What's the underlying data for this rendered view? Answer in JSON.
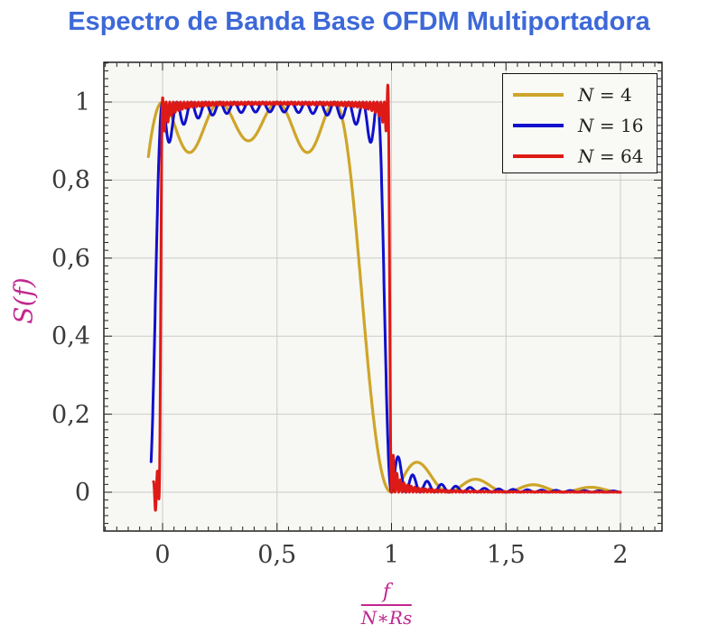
{
  "title": {
    "text": "Espectro de Banda Base OFDM Multiportadora",
    "color": "#3D68D8"
  },
  "legend": {
    "entries": [
      {
        "label": "N = 4",
        "color": "#CEA528"
      },
      {
        "label": "N = 16",
        "color": "#1010CC"
      },
      {
        "label": "N = 64",
        "color": "#DE1A16"
      }
    ]
  },
  "axes": {
    "x": {
      "tick_labels": [
        "0",
        "0,5",
        "1",
        "1,5",
        "2"
      ],
      "tick_values": [
        0,
        0.5,
        1,
        1.5,
        2
      ],
      "minor_step": 0.05,
      "min": -0.256,
      "max": 2.182,
      "label": {
        "numerator": "f",
        "denominator": "N∗Rs"
      },
      "label_color": "#C0288E"
    },
    "y": {
      "tick_labels": [
        "0",
        "0,2",
        "0,4",
        "0,6",
        "0,8",
        "1"
      ],
      "tick_values": [
        0,
        0.2,
        0.4,
        0.6,
        0.8,
        1
      ],
      "minor_step": 0.02,
      "min": -0.1,
      "max": 1.102,
      "label": "S(f)",
      "label_color": "#C0288E"
    }
  },
  "chart_data": {
    "type": "line",
    "title": "Espectro de Banda Base OFDM Multiportadora",
    "xlabel": "f/(N*Rs)",
    "ylabel": "S(f)",
    "xlim": [
      -0.256,
      2.182
    ],
    "ylim": [
      -0.1,
      1.102
    ],
    "grid": true,
    "legend_position": "top-right",
    "x_major_ticks": [
      0,
      0.5,
      1,
      1.5,
      2
    ],
    "y_major_ticks": [
      0,
      0.2,
      0.4,
      0.6,
      0.8,
      1
    ],
    "plot_bg": "#f7f7f4",
    "grid_color": "#cbcbcb",
    "series": [
      {
        "name": "N = 4",
        "color": "#CEA528",
        "line_width": 3.2,
        "samples": 1400,
        "model": {
          "formula": "S(x) = sum_{k=0..N-1} sinc^2(N*x - k)",
          "N": 4,
          "x_start": -0.062,
          "x_end": 2,
          "bumps": []
        },
        "features": {
          "passband": [
            0,
            1
          ],
          "peak_value": 1.0,
          "in_band_ripple_min": 0.87,
          "ripple_dip_xs": [
            0.125,
            0.375,
            0.625
          ],
          "sidelobes": [
            {
              "x": 1.11,
              "y": 0.075
            },
            {
              "x": 1.36,
              "y": 0.033
            },
            {
              "x": 1.61,
              "y": 0.019
            },
            {
              "x": 1.86,
              "y": 0.012
            }
          ]
        }
      },
      {
        "name": "N = 16",
        "color": "#1010CC",
        "line_width": 3,
        "samples": 1800,
        "model": {
          "formula": "S(x) = sum_{k=0..N-1} sinc^2(N*x - k)",
          "N": 16,
          "x_start": -0.05,
          "x_end": 2,
          "bumps": []
        },
        "features": {
          "passband": [
            0,
            1
          ],
          "peak_value": 1.0,
          "edge_ripple_min": 0.88,
          "mid_ripple_min": 0.96,
          "first_sidelobe": {
            "x": 1.03,
            "y": 0.08
          }
        }
      },
      {
        "name": "N = 64",
        "color": "#DE1A16",
        "line_width": 3,
        "samples": 2600,
        "model": {
          "formula": "S(x) = sum_{k=0..N-1} sinc^2(N*x - k)",
          "N": 64,
          "x_start": -0.04,
          "x_end": 2,
          "bumps": [
            {
              "x": -0.028,
              "a": -0.05,
              "w": 0.012
            },
            {
              "x": 0.005,
              "a": 0.03,
              "w": 0.005
            },
            {
              "x": 0.982,
              "a": 0.05,
              "w": 0.006
            }
          ]
        },
        "features": {
          "passband": [
            0,
            1
          ],
          "peak_value": 1.0,
          "edge_overshoot": 1.045,
          "first_sidelobe": {
            "x": 1.007,
            "y": 0.05
          }
        }
      }
    ]
  }
}
